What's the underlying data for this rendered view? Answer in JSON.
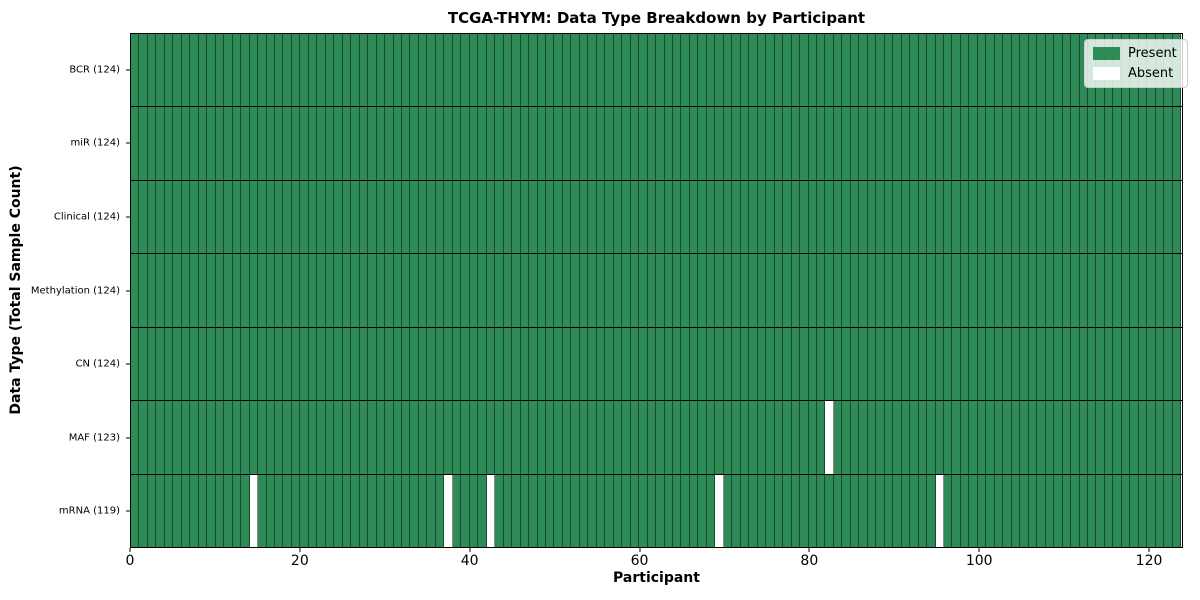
{
  "chart_data": {
    "type": "heatmap",
    "title": "TCGA-THYM: Data Type Breakdown by Participant",
    "xlabel": "Participant",
    "ylabel": "Data Type (Total Sample Count)",
    "x_ticks": [
      0,
      20,
      40,
      60,
      80,
      100,
      120
    ],
    "x_range": [
      0,
      124
    ],
    "n_participants": 124,
    "rows": [
      {
        "data_type": "BCR",
        "label": "BCR (124)",
        "present_count": 124,
        "absent_participants": []
      },
      {
        "data_type": "miR",
        "label": "miR (124)",
        "present_count": 124,
        "absent_participants": []
      },
      {
        "data_type": "Clinical",
        "label": "Clinical (124)",
        "present_count": 124,
        "absent_participants": []
      },
      {
        "data_type": "Methylation",
        "label": "Methylation (124)",
        "present_count": 124,
        "absent_participants": []
      },
      {
        "data_type": "CN",
        "label": "CN (124)",
        "present_count": 124,
        "absent_participants": []
      },
      {
        "data_type": "MAF",
        "label": "MAF (123)",
        "present_count": 123,
        "absent_participants": [
          82
        ]
      },
      {
        "data_type": "mRNA",
        "label": "mRNA (119)",
        "present_count": 119,
        "absent_participants": [
          14,
          37,
          42,
          69,
          95
        ]
      }
    ],
    "legend": {
      "position": "upper right",
      "items": [
        {
          "label": "Present",
          "color": "#2e8b57"
        },
        {
          "label": "Absent",
          "color": "#ffffff"
        }
      ]
    },
    "colors": {
      "present": "#2e8b57",
      "absent": "#ffffff",
      "cell_grid_line": "rgba(0,0,0,0.45)",
      "row_separator": "#000000",
      "spine": "#000000"
    },
    "grid": "cell borders on",
    "legend_background": "rgba(255,255,255,0.8)"
  }
}
